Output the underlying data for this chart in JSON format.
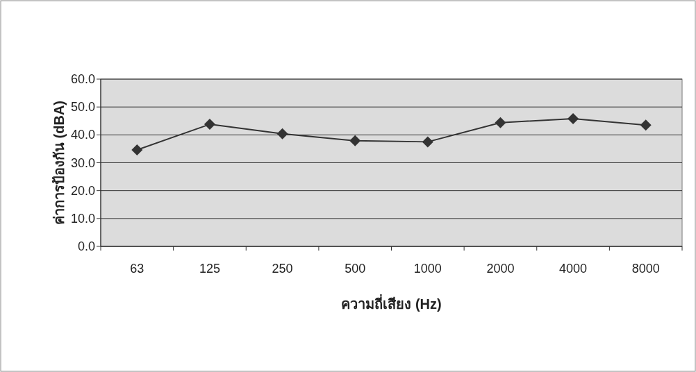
{
  "chart_data": {
    "type": "line",
    "xlabel": "ความถี่เสียง (Hz)",
    "ylabel": "ค่าการป้องกัน (dBA)",
    "categories": [
      "63",
      "125",
      "250",
      "500",
      "1000",
      "2000",
      "4000",
      "8000"
    ],
    "values": [
      34.6,
      43.8,
      40.4,
      37.9,
      37.5,
      44.4,
      45.8,
      43.5
    ],
    "color": "#333333",
    "marker": "diamond",
    "line_style": "solid",
    "grid": "y",
    "ylim": [
      0,
      60
    ],
    "yticks": [
      {
        "value": 0,
        "label": "0.0"
      },
      {
        "value": 10,
        "label": "10.0"
      },
      {
        "value": 20,
        "label": "20.0"
      },
      {
        "value": 30,
        "label": "30.0"
      },
      {
        "value": 40,
        "label": "40.0"
      },
      {
        "value": 50,
        "label": "50.0"
      },
      {
        "value": 60,
        "label": "60.0"
      }
    ]
  }
}
